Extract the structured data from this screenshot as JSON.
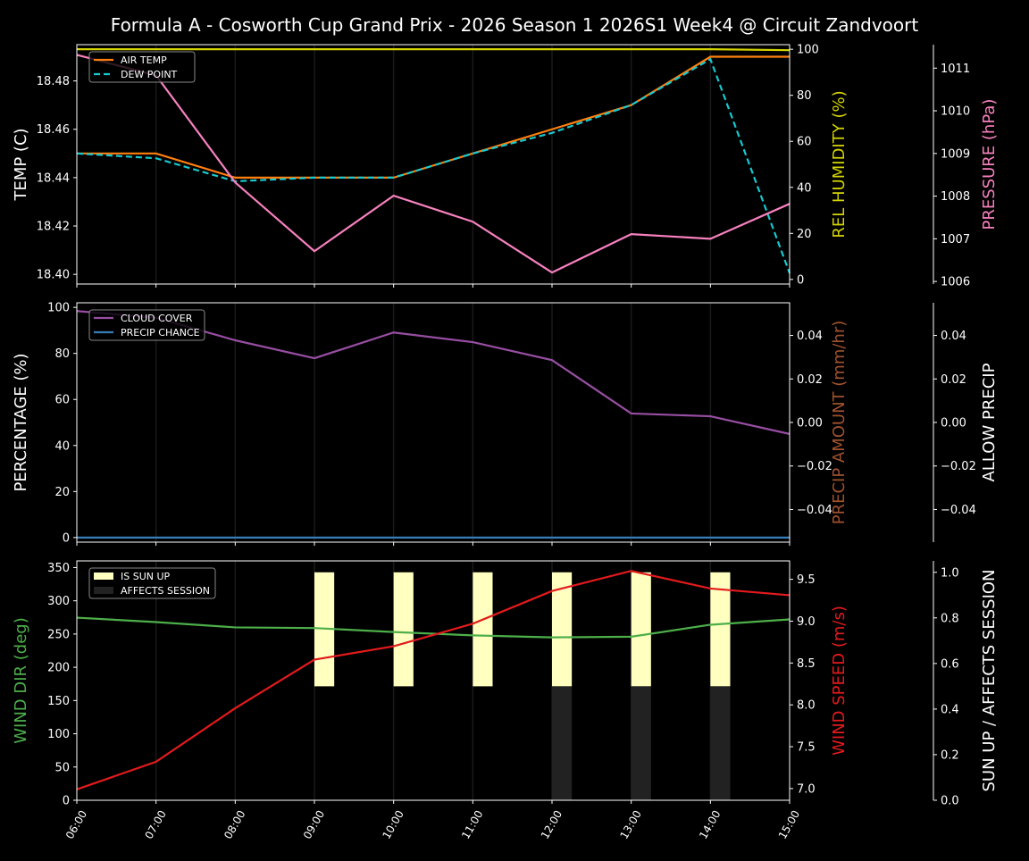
{
  "title": "Formula A - Cosworth Cup Grand Prix - 2026 Season 1 2026S1 Week4 @ Circuit Zandvoort",
  "chart_data": [
    {
      "type": "line",
      "x": [
        "06:00",
        "07:00",
        "08:00",
        "09:00",
        "10:00",
        "11:00",
        "12:00",
        "13:00",
        "14:00",
        "15:00"
      ],
      "axes": {
        "left": {
          "label": "TEMP (C)",
          "color": "#ffffff",
          "ylim": [
            18.396,
            18.495
          ],
          "ticks": [
            18.4,
            18.42,
            18.44,
            18.46,
            18.48
          ],
          "tick_labels": [
            "18.40",
            "18.42",
            "18.44",
            "18.46",
            "18.48"
          ]
        },
        "right1": {
          "label": "REL HUMIDITY (%)",
          "color": "#d4d400",
          "ylim": [
            -2,
            102
          ],
          "ticks": [
            0,
            20,
            40,
            60,
            80,
            100
          ],
          "tick_labels": [
            "0",
            "20",
            "40",
            "60",
            "80",
            "100"
          ]
        },
        "right2": {
          "label": "PRESSURE (hPa)",
          "color": "#f781bf",
          "ylim": [
            1005.94,
            1011.55
          ],
          "ticks": [
            1006,
            1007,
            1008,
            1009,
            1010,
            1011
          ],
          "tick_labels": [
            "1006",
            "1007",
            "1008",
            "1009",
            "1010",
            "1011"
          ]
        }
      },
      "legend": {
        "placement": "top-left",
        "entries": [
          "AIR TEMP",
          "DEW POINT"
        ]
      },
      "series": [
        {
          "name": "AIR TEMP",
          "axis": "left",
          "color": "#ff7f0e",
          "style": "solid",
          "values": [
            18.45,
            18.45,
            18.44,
            18.44,
            18.44,
            18.45,
            18.46,
            18.47,
            18.49,
            18.49
          ]
        },
        {
          "name": "DEW POINT",
          "axis": "left",
          "color": "#17c8cf",
          "style": "dashed",
          "values": [
            18.45,
            18.448,
            18.4385,
            18.44,
            18.44,
            18.45,
            18.4585,
            18.47,
            18.489,
            18.4005
          ]
        },
        {
          "axis": "right1",
          "color": "#d4d400",
          "style": "solid",
          "values": [
            100,
            100,
            100,
            100,
            100,
            100,
            100,
            100,
            100,
            99.6
          ]
        },
        {
          "axis": "right2",
          "color": "#f781bf",
          "style": "solid",
          "values": [
            1011.31,
            1010.83,
            1008.32,
            1006.71,
            1008.01,
            1007.4,
            1006.21,
            1007.11,
            1007.0,
            1007.82
          ]
        }
      ]
    },
    {
      "type": "line",
      "x": [
        "06:00",
        "07:00",
        "08:00",
        "09:00",
        "10:00",
        "11:00",
        "12:00",
        "13:00",
        "14:00",
        "15:00"
      ],
      "axes": {
        "left": {
          "label": "PERCENTAGE (%)",
          "color": "#ffffff",
          "ylim": [
            -2,
            102
          ],
          "ticks": [
            0,
            20,
            40,
            60,
            80,
            100
          ],
          "tick_labels": [
            "0",
            "20",
            "40",
            "60",
            "80",
            "100"
          ]
        },
        "right1": {
          "label": "PRECIP AMOUNT (mm/hr)",
          "color": "#a0522d",
          "ylim": [
            -0.055,
            0.055
          ],
          "ticks": [
            -0.04,
            -0.02,
            0,
            0.02,
            0.04
          ],
          "tick_labels": [
            "−0.04",
            "−0.02",
            "0.00",
            "0.02",
            "0.04"
          ]
        },
        "right2": {
          "label": "ALLOW PRECIP",
          "color": "#ffffff",
          "ylim": [
            -0.055,
            0.055
          ],
          "ticks": [
            -0.04,
            -0.02,
            0,
            0.02,
            0.04
          ],
          "tick_labels": [
            "−0.04",
            "−0.02",
            "0.00",
            "0.02",
            "0.04"
          ]
        }
      },
      "legend": {
        "placement": "top-left",
        "entries": [
          "CLOUD COVER",
          "PRECIP CHANCE"
        ]
      },
      "series": [
        {
          "name": "CLOUD COVER",
          "axis": "left",
          "color": "#984ea3",
          "style": "solid",
          "values": [
            98.4,
            95.5,
            85.7,
            77.9,
            89.1,
            84.9,
            77.1,
            53.9,
            52.7,
            45.0
          ]
        },
        {
          "name": "PRECIP CHANCE",
          "axis": "left",
          "color": "#377eb8",
          "style": "solid",
          "values": [
            0,
            0,
            0,
            0,
            0,
            0,
            0,
            0,
            0,
            0
          ]
        }
      ]
    },
    {
      "type": "line",
      "x": [
        "06:00",
        "07:00",
        "08:00",
        "09:00",
        "10:00",
        "11:00",
        "12:00",
        "13:00",
        "14:00",
        "15:00"
      ],
      "axes": {
        "left": {
          "label": "WIND DIR (deg)",
          "color": "#4daf4a",
          "ylim": [
            0,
            360
          ],
          "ticks": [
            0,
            50,
            100,
            150,
            200,
            250,
            300,
            350
          ],
          "tick_labels": [
            "0",
            "50",
            "100",
            "150",
            "200",
            "250",
            "300",
            "350"
          ]
        },
        "right1": {
          "label": "WIND SPEED (m/s)",
          "color": "#e41a1c",
          "ylim": [
            6.86,
            9.72
          ],
          "ticks": [
            7.0,
            7.5,
            8.0,
            8.5,
            9.0,
            9.5
          ],
          "tick_labels": [
            "7.0",
            "7.5",
            "8.0",
            "8.5",
            "9.0",
            "9.5"
          ]
        },
        "right2": {
          "label": "SUN UP / AFFECTS SESSION",
          "color": "#ffffff",
          "ylim": [
            0,
            1.05
          ],
          "ticks": [
            0,
            0.2,
            0.4,
            0.6,
            0.8,
            1.0
          ],
          "tick_labels": [
            "0.0",
            "0.2",
            "0.4",
            "0.6",
            "0.8",
            "1.0"
          ]
        }
      },
      "legend": {
        "placement": "top-left",
        "entries": [
          "IS SUN UP",
          "AFFECTS SESSION"
        ]
      },
      "bars": [
        {
          "name": "IS SUN UP",
          "axis": "right2",
          "color": "#ffffc0",
          "bottom": 0.5,
          "top": 1.0,
          "x": [
            "09:00",
            "10:00",
            "11:00",
            "12:00",
            "13:00",
            "14:00"
          ]
        },
        {
          "name": "AFFECTS SESSION",
          "axis": "right2",
          "color": "#222222",
          "bottom": 0,
          "top": 0.5,
          "x": [
            "12:00",
            "13:00",
            "14:00"
          ]
        }
      ],
      "series": [
        {
          "axis": "left",
          "color": "#4daf4a",
          "style": "solid",
          "values": [
            274.6,
            268,
            260,
            259,
            253,
            248,
            245,
            246,
            264,
            272
          ]
        },
        {
          "axis": "right1",
          "color": "#e41a1c",
          "style": "solid",
          "values": [
            6.99,
            7.32,
            7.96,
            8.54,
            8.7,
            8.97,
            9.36,
            9.6,
            9.39,
            9.31
          ]
        }
      ]
    }
  ]
}
